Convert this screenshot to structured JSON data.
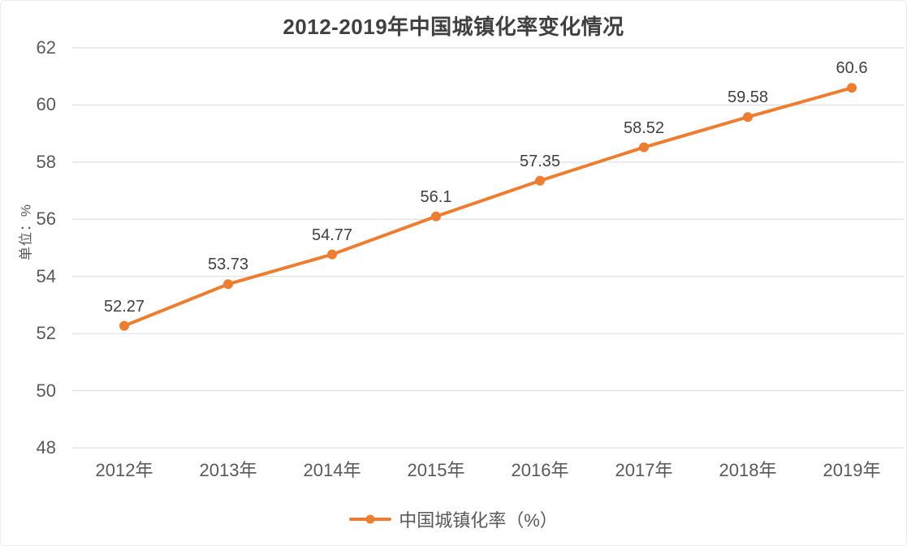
{
  "chart_data": {
    "type": "line",
    "title": "2012-2019年中国城镇化率变化情况",
    "ylabel": "单位：%",
    "categories": [
      "2012年",
      "2013年",
      "2014年",
      "2015年",
      "2016年",
      "2017年",
      "2018年",
      "2019年"
    ],
    "series": [
      {
        "name": "中国城镇化率（%）",
        "values": [
          52.27,
          53.73,
          54.77,
          56.1,
          57.35,
          58.52,
          59.58,
          60.6
        ],
        "data_labels": [
          "52.27",
          "53.73",
          "54.77",
          "56.1",
          "57.35",
          "58.52",
          "59.58",
          "60.6"
        ],
        "color": "#ED7D31"
      }
    ],
    "ylim": [
      48,
      62
    ],
    "yticks": [
      48,
      50,
      52,
      54,
      56,
      58,
      60,
      62
    ],
    "grid": true,
    "legend_position": "bottom",
    "legend_label": "中国城镇化率（%）"
  },
  "colors": {
    "series": "#ED7D31",
    "gridline": "#D9D9D9",
    "axis_text": "#595959",
    "title_text": "#404040",
    "data_label_text": "#404040",
    "border": "#EDEDED",
    "background": "#FFFFFF"
  }
}
